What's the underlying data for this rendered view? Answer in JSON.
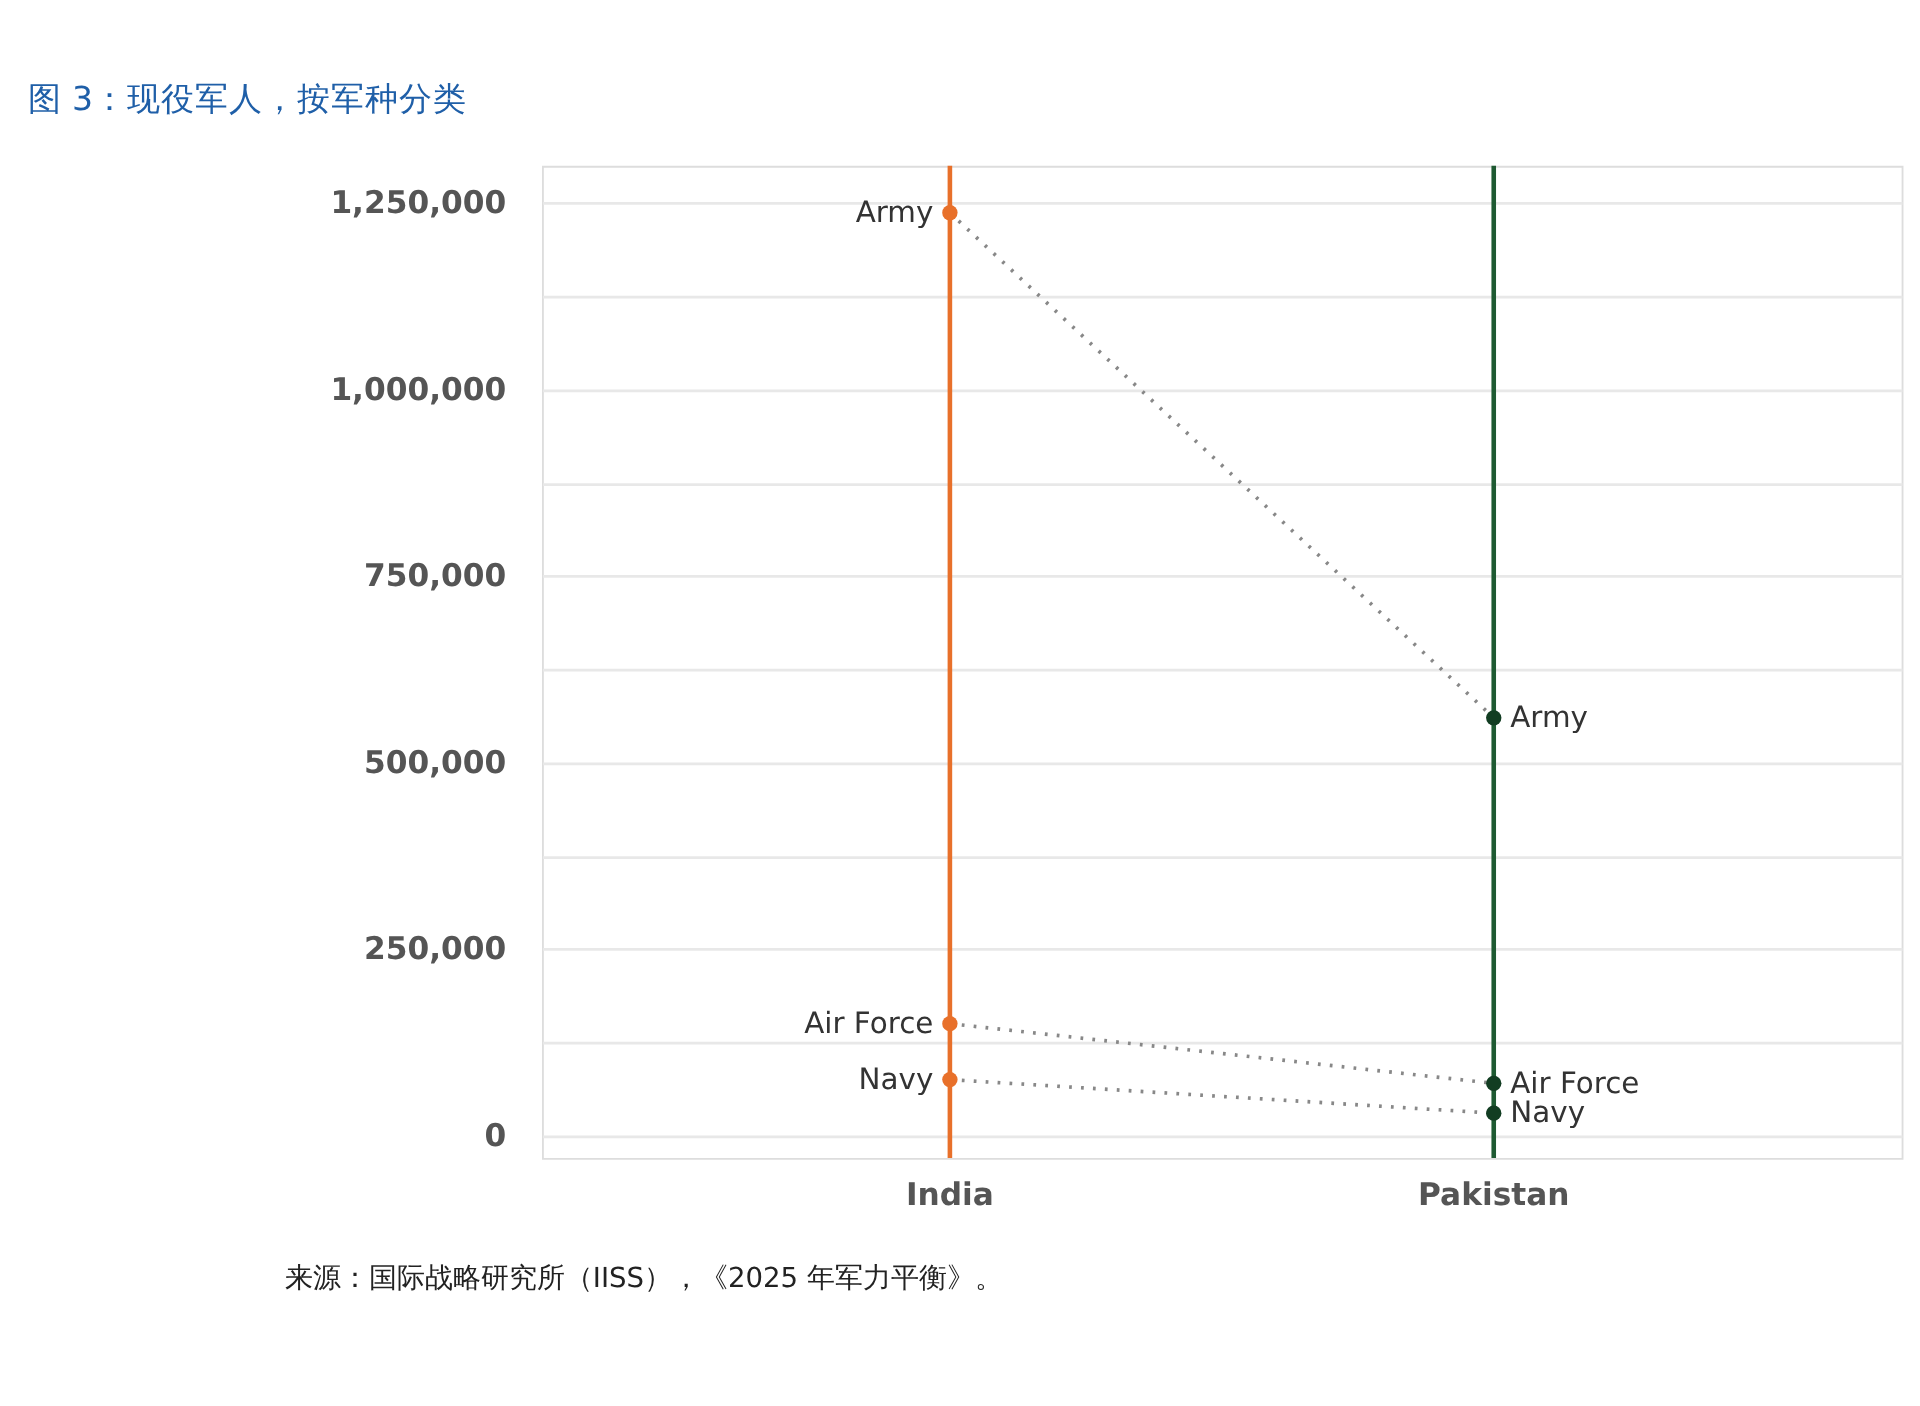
{
  "chart_data": {
    "type": "line",
    "title": "图 3：现役军人，按军种分类",
    "categories": [
      "India",
      "Pakistan"
    ],
    "series": [
      {
        "name": "Army",
        "color": "#888888",
        "colors": [
          "#e8702a",
          "#123d22"
        ],
        "values": [
          1237000,
          560000
        ]
      },
      {
        "name": "Air Force",
        "color": "#888888",
        "colors": [
          "#e8702a",
          "#123d22"
        ],
        "values": [
          150000,
          70000
        ]
      },
      {
        "name": "Navy",
        "color": "#888888",
        "colors": [
          "#e8702a",
          "#123d22"
        ],
        "values": [
          75000,
          30000
        ]
      }
    ],
    "ylim": [
      -30000,
      1300000
    ],
    "yticks": [
      0,
      {
        "value": 125000,
        "label": null
      },
      {
        "value": 250000,
        "label": "250,000"
      },
      {
        "value": 375000,
        "label": null
      },
      {
        "value": 500000,
        "label": "500,000"
      },
      {
        "value": 625000,
        "label": null
      },
      {
        "value": 750000,
        "label": "750,000"
      },
      {
        "value": 875000,
        "label": null
      },
      {
        "value": 1000000,
        "label": "1,000,000"
      },
      {
        "value": 1125000,
        "label": null
      },
      {
        "value": 1250000,
        "label": "1,250,000"
      }
    ],
    "ref_lines": [
      {
        "axis": "x",
        "value": "India",
        "color": "#e8702a"
      },
      {
        "axis": "x",
        "value": "Pakistan",
        "color": "#1e5a32"
      }
    ],
    "grid": "y",
    "marker": "circle",
    "line_style": "dotted",
    "annotations": [
      "来源：国际战略研究所（IISS），《2025 年军力平衡》。"
    ]
  }
}
